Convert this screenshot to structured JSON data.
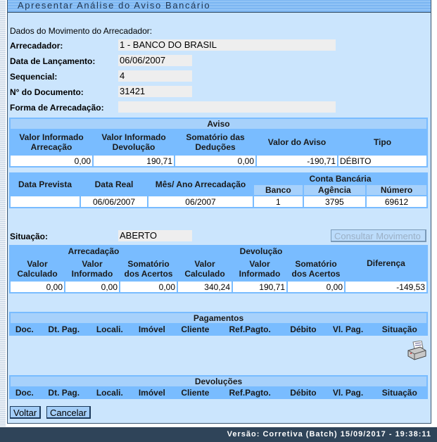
{
  "title": "Apresentar Análise do Aviso Bancário",
  "section_label": "Dados do Movimento do Arrecadador:",
  "fields": [
    {
      "label": "Arrecadador:",
      "value": "1 - BANCO DO BRASIL"
    },
    {
      "label": "Data de Lançamento:",
      "value": "06/06/2007"
    },
    {
      "label": "Sequencial:",
      "value": "4"
    },
    {
      "label": "N° do Documento:",
      "value": "31421"
    },
    {
      "label": "Forma de Arrecadação:",
      "value": ""
    }
  ],
  "aviso": {
    "title": "Aviso",
    "headers": [
      "Valor Informado Arrecação",
      "Valor Informado Devolução",
      "Somatório das Deduções",
      "Valor do Aviso",
      "Tipo"
    ],
    "row": [
      "0,00",
      "190,71",
      "0,00",
      "-190,71",
      "DÉBITO"
    ]
  },
  "datas": {
    "headers": [
      "Data Prevista",
      "Data Real",
      "Mês/ Ano Arrecadação"
    ],
    "conta_title": "Conta Bancária",
    "conta_headers": [
      "Banco",
      "Agência",
      "Número"
    ],
    "row": [
      "",
      "06/06/2007",
      "06/2007",
      "1",
      "3795",
      "69612"
    ]
  },
  "situacao": {
    "label": "Situação:",
    "value": "ABERTO",
    "consult_button": "Consultar Movimento"
  },
  "valores": {
    "arrecadacao": "Arrecadação",
    "devolucao": "Devolução",
    "diferenca": "Diferença",
    "headers": [
      "Valor Calculado",
      "Valor Informado",
      "Somatório dos Acertos",
      "Valor Calculado",
      "Valor Informado",
      "Somatório dos Acertos"
    ],
    "row": [
      "0,00",
      "0,00",
      "0,00",
      "340,24",
      "190,71",
      "0,00",
      "-149,53"
    ]
  },
  "pagamentos": {
    "title": "Pagamentos",
    "headers": [
      "Doc.",
      "Dt. Pag.",
      "Locali.",
      "Imóvel",
      "Cliente",
      "Ref.Pagto.",
      "Débito",
      "Vl. Pag.",
      "Situação"
    ]
  },
  "devolucoes": {
    "title": "Devoluções",
    "headers": [
      "Doc.",
      "Dt. Pag.",
      "Locali.",
      "Imóvel",
      "Cliente",
      "Ref.Pagto.",
      "Débito",
      "Vl. Pag.",
      "Situação"
    ]
  },
  "buttons": {
    "voltar": "Voltar",
    "cancelar": "Cancelar"
  },
  "footer": "Versão: Corretiva (Batch) 15/09/2017 - 19:38:11"
}
